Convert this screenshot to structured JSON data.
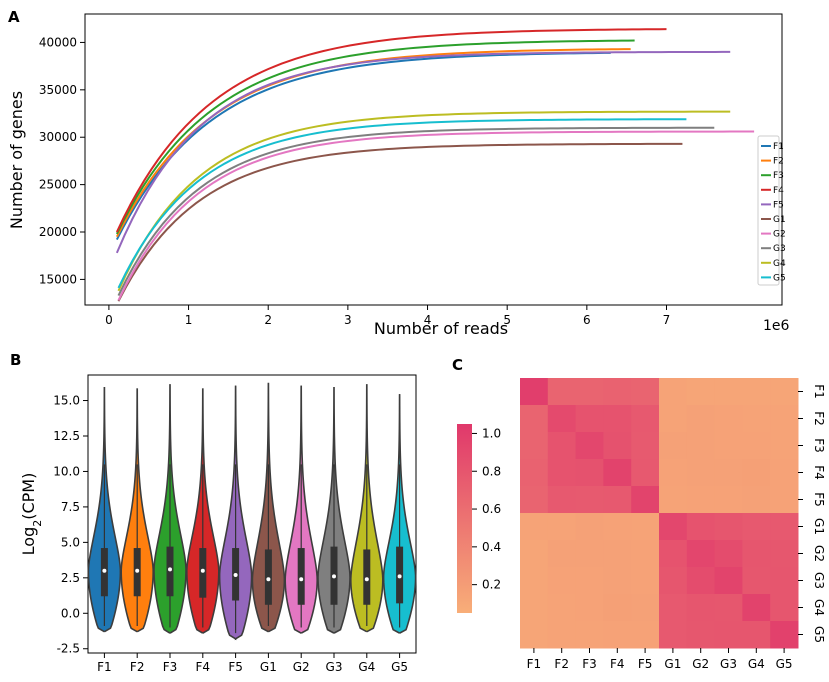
{
  "panels": {
    "a": "A",
    "b": "B",
    "c": "C"
  },
  "chart_data": [
    {
      "type": "line",
      "panel": "A",
      "xlabel": "Number of reads",
      "ylabel": "Number of genes",
      "x_offset_label": "1e6",
      "xlim": [
        -0.3,
        8.45
      ],
      "ylim": [
        12300,
        43000
      ],
      "xticks": [
        0,
        1,
        2,
        3,
        4,
        5,
        6,
        7
      ],
      "yticks": [
        15000,
        20000,
        25000,
        30000,
        35000,
        40000
      ],
      "legend_position": "lower-right",
      "series": [
        {
          "name": "F1",
          "color": "#1f77b4",
          "x_start": 0.1,
          "x_end": 6.3,
          "y_start": 19200,
          "y_end": 38900,
          "k": 0.85
        },
        {
          "name": "F2",
          "color": "#ff7f0e",
          "x_start": 0.1,
          "x_end": 6.55,
          "y_start": 19500,
          "y_end": 39300,
          "k": 0.85
        },
        {
          "name": "F3",
          "color": "#2ca02c",
          "x_start": 0.1,
          "x_end": 6.6,
          "y_start": 19800,
          "y_end": 40200,
          "k": 0.85
        },
        {
          "name": "F4",
          "color": "#d62728",
          "x_start": 0.1,
          "x_end": 7.0,
          "y_start": 20000,
          "y_end": 41400,
          "k": 0.85
        },
        {
          "name": "F5",
          "color": "#9467bd",
          "x_start": 0.1,
          "x_end": 7.8,
          "y_start": 17800,
          "y_end": 39000,
          "k": 0.95
        },
        {
          "name": "G1",
          "color": "#8c564b",
          "x_start": 0.12,
          "x_end": 7.2,
          "y_start": 12700,
          "y_end": 29300,
          "k": 1.0
        },
        {
          "name": "G2",
          "color": "#e377c2",
          "x_start": 0.12,
          "x_end": 8.1,
          "y_start": 12800,
          "y_end": 30600,
          "k": 1.0
        },
        {
          "name": "G3",
          "color": "#7f7f7f",
          "x_start": 0.12,
          "x_end": 7.6,
          "y_start": 13300,
          "y_end": 31000,
          "k": 1.0
        },
        {
          "name": "G4",
          "color": "#bcbd22",
          "x_start": 0.12,
          "x_end": 7.8,
          "y_start": 13800,
          "y_end": 32700,
          "k": 1.0
        },
        {
          "name": "G5",
          "color": "#17becf",
          "x_start": 0.12,
          "x_end": 7.25,
          "y_start": 14100,
          "y_end": 31900,
          "k": 1.0
        }
      ]
    },
    {
      "type": "violin",
      "panel": "B",
      "ylabel": "Log2(CPM)",
      "ylim": [
        -2.8,
        16.8
      ],
      "yticks": [
        -2.5,
        0.0,
        2.5,
        5.0,
        7.5,
        10.0,
        12.5,
        15.0
      ],
      "ytick_labels": [
        "-2.5",
        "0.0",
        "2.5",
        "5.0",
        "7.5",
        "10.0",
        "12.5",
        "15.0"
      ],
      "categories": [
        "F1",
        "F2",
        "F3",
        "F4",
        "F5",
        "G1",
        "G2",
        "G3",
        "G4",
        "G5"
      ],
      "colors": [
        "#1f77b4",
        "#ff7f0e",
        "#2ca02c",
        "#d62728",
        "#9467bd",
        "#8c564b",
        "#e377c2",
        "#7f7f7f",
        "#bcbd22",
        "#17becf"
      ],
      "max": [
        15.9,
        15.8,
        16.1,
        15.8,
        16.0,
        16.2,
        16.0,
        15.9,
        16.1,
        15.4
      ],
      "min": [
        -1.3,
        -1.3,
        -1.4,
        -1.4,
        -1.8,
        -1.3,
        -1.4,
        -1.4,
        -1.3,
        -1.4
      ],
      "q1": [
        1.2,
        1.2,
        1.2,
        1.1,
        0.9,
        0.6,
        0.6,
        0.6,
        0.6,
        0.7
      ],
      "median": [
        3.0,
        3.0,
        3.1,
        3.0,
        2.7,
        2.4,
        2.4,
        2.6,
        2.4,
        2.6
      ],
      "q3": [
        4.6,
        4.6,
        4.7,
        4.6,
        4.6,
        4.5,
        4.6,
        4.7,
        4.5,
        4.7
      ]
    },
    {
      "type": "heatmap",
      "panel": "C",
      "row_labels": [
        "F1",
        "F2",
        "F3",
        "F4",
        "F5",
        "G1",
        "G2",
        "G3",
        "G4",
        "G5"
      ],
      "col_labels": [
        "F1",
        "F2",
        "F3",
        "F4",
        "F5",
        "G1",
        "G2",
        "G3",
        "G4",
        "G5"
      ],
      "colorbar_ticks": [
        "1.0",
        "0.8",
        "0.6",
        "0.4",
        "0.2"
      ],
      "colorbar_tick_values": [
        1.0,
        0.8,
        0.6,
        0.4,
        0.2
      ],
      "vmin": 0.05,
      "vmax": 1.05,
      "colorbar_low_color": "#f8ae78",
      "colorbar_high_color": "#e0386b",
      "values": [
        [
          1.0,
          0.68,
          0.68,
          0.69,
          0.68,
          0.14,
          0.13,
          0.13,
          0.13,
          0.13
        ],
        [
          0.68,
          0.9,
          0.82,
          0.82,
          0.77,
          0.14,
          0.16,
          0.15,
          0.14,
          0.14
        ],
        [
          0.68,
          0.82,
          0.92,
          0.83,
          0.76,
          0.16,
          0.16,
          0.15,
          0.15,
          0.14
        ],
        [
          0.69,
          0.82,
          0.83,
          0.96,
          0.77,
          0.15,
          0.16,
          0.16,
          0.17,
          0.15
        ],
        [
          0.68,
          0.77,
          0.76,
          0.77,
          0.95,
          0.14,
          0.15,
          0.15,
          0.16,
          0.15
        ],
        [
          0.14,
          0.14,
          0.16,
          0.15,
          0.14,
          0.92,
          0.82,
          0.8,
          0.77,
          0.77
        ],
        [
          0.13,
          0.16,
          0.16,
          0.16,
          0.15,
          0.82,
          0.93,
          0.88,
          0.8,
          0.79
        ],
        [
          0.13,
          0.15,
          0.15,
          0.16,
          0.15,
          0.8,
          0.88,
          0.95,
          0.79,
          0.8
        ],
        [
          0.13,
          0.14,
          0.15,
          0.17,
          0.16,
          0.77,
          0.8,
          0.79,
          0.96,
          0.8
        ],
        [
          0.13,
          0.14,
          0.14,
          0.15,
          0.15,
          0.77,
          0.79,
          0.8,
          0.8,
          0.97
        ]
      ]
    }
  ]
}
